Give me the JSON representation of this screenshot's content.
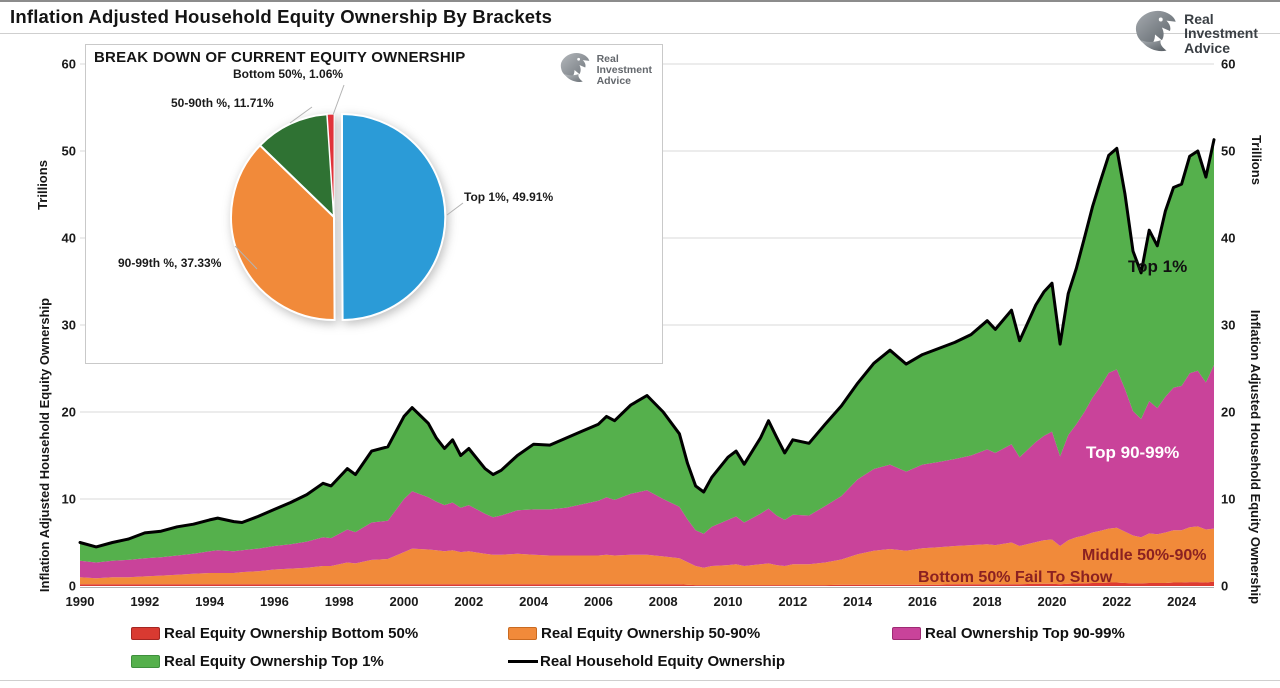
{
  "page": {
    "title": "Inflation Adjusted Household Equity Ownership By Brackets"
  },
  "brand": {
    "name_lines": [
      "Real",
      "Investment",
      "Advice"
    ]
  },
  "inset": {
    "title": "BREAK DOWN OF CURRENT EQUITY OWNERSHIP",
    "logo_lines": [
      "Real",
      "Investment",
      "Advice"
    ]
  },
  "axes": {
    "left_unit_label": "Trillions",
    "left_axis_label": "Inflation Adjusted Household Equity Ownership",
    "right_unit_label": "Trillions",
    "right_axis_label": "Inflation Adjusted Household Equity Ownership",
    "y_ticks": [
      0,
      10,
      20,
      30,
      40,
      50,
      60
    ],
    "x_ticks": [
      1990,
      1992,
      1994,
      1996,
      1998,
      2000,
      2002,
      2004,
      2006,
      2008,
      2010,
      2012,
      2014,
      2016,
      2018,
      2020,
      2022,
      2024
    ]
  },
  "annotations": [
    {
      "id": "top1",
      "text": "Top 1%",
      "color": "#111111"
    },
    {
      "id": "top9099",
      "text": "Top 90-99%",
      "color": "#ffffff"
    },
    {
      "id": "middle",
      "text": "Middle 50%-90%",
      "color": "#8b2121"
    },
    {
      "id": "bottom",
      "text": "Bottom 50% Fail To Show",
      "color": "#8b2121"
    }
  ],
  "legend": {
    "items": [
      {
        "label": "Real Equity Ownership Bottom 50%",
        "color": "#d93a31",
        "border": "#a32622",
        "type": "patch"
      },
      {
        "label": "Real Equity Ownership 50-90%",
        "color": "#f18a3a",
        "border": "#c96a20",
        "type": "patch"
      },
      {
        "label": "Real Ownership Top 90-99%",
        "color": "#c9439a",
        "border": "#9e2a73",
        "type": "patch"
      },
      {
        "label": "Real Equity Ownership Top 1%",
        "color": "#55b04c",
        "border": "#3f8f3d",
        "type": "patch"
      },
      {
        "label": "Real Household Equity Ownership",
        "color": "#000000",
        "border": "#000000",
        "type": "line"
      }
    ]
  },
  "chart_data": [
    {
      "type": "area",
      "stacked": true,
      "title": "Inflation Adjusted Household Equity Ownership By Brackets",
      "ylabel": "Inflation Adjusted Household Equity Ownership (Trillions)",
      "x_range": [
        1990,
        2025
      ],
      "ylim": [
        0,
        60
      ],
      "grid": "horizontal",
      "grid_color": "#d9d9d9",
      "x": [
        1990,
        1990.5,
        1991,
        1991.5,
        1992,
        1992.5,
        1993,
        1993.5,
        1994,
        1994.25,
        1994.75,
        1995,
        1995.5,
        1996,
        1996.5,
        1997,
        1997.5,
        1997.75,
        1998.25,
        1998.5,
        1999,
        1999.5,
        2000,
        2000.25,
        2000.75,
        2001,
        2001.25,
        2001.5,
        2001.75,
        2002,
        2002.5,
        2002.75,
        2003,
        2003.5,
        2004,
        2004.5,
        2005,
        2005.5,
        2006,
        2006.25,
        2006.5,
        2007,
        2007.5,
        2008,
        2008.5,
        2008.75,
        2009,
        2009.25,
        2009.5,
        2010,
        2010.25,
        2010.5,
        2011,
        2011.25,
        2011.5,
        2011.75,
        2012,
        2012.5,
        2013,
        2013.5,
        2014,
        2014.5,
        2015,
        2015.5,
        2016,
        2016.5,
        2017,
        2017.5,
        2018,
        2018.25,
        2018.75,
        2019,
        2019.5,
        2019.75,
        2020,
        2020.25,
        2020.5,
        2020.75,
        2021,
        2021.25,
        2021.5,
        2021.75,
        2022,
        2022.25,
        2022.5,
        2022.75,
        2023,
        2023.25,
        2023.5,
        2023.75,
        2024,
        2024.25,
        2024.5,
        2024.75,
        2025
      ],
      "series": [
        {
          "name": "Real Equity Ownership Bottom 50%",
          "color": "#dd3b32",
          "values": [
            0.2,
            0.2,
            0.2,
            0.2,
            0.2,
            0.2,
            0.2,
            0.2,
            0.2,
            0.2,
            0.2,
            0.2,
            0.2,
            0.2,
            0.2,
            0.2,
            0.2,
            0.2,
            0.2,
            0.2,
            0.2,
            0.2,
            0.2,
            0.2,
            0.2,
            0.2,
            0.2,
            0.2,
            0.2,
            0.2,
            0.2,
            0.2,
            0.2,
            0.2,
            0.2,
            0.2,
            0.2,
            0.2,
            0.2,
            0.2,
            0.2,
            0.2,
            0.2,
            0.2,
            0.2,
            0.15,
            0.1,
            0.1,
            0.1,
            0.1,
            0.1,
            0.1,
            0.1,
            0.1,
            0.1,
            0.1,
            0.1,
            0.1,
            0.1,
            0.15,
            0.15,
            0.15,
            0.15,
            0.15,
            0.15,
            0.15,
            0.2,
            0.2,
            0.2,
            0.2,
            0.2,
            0.2,
            0.25,
            0.25,
            0.25,
            0.2,
            0.25,
            0.3,
            0.3,
            0.35,
            0.35,
            0.4,
            0.4,
            0.35,
            0.3,
            0.3,
            0.35,
            0.35,
            0.35,
            0.4,
            0.4,
            0.45,
            0.45,
            0.4,
            0.5
          ]
        },
        {
          "name": "Real Equity Ownership 50-90%",
          "color": "#f18a3a",
          "values": [
            0.8,
            0.7,
            0.8,
            0.8,
            0.9,
            1.0,
            1.1,
            1.2,
            1.3,
            1.3,
            1.3,
            1.4,
            1.5,
            1.7,
            1.8,
            1.9,
            2.1,
            2.1,
            2.5,
            2.4,
            2.8,
            2.9,
            3.7,
            4.1,
            4.0,
            3.9,
            3.8,
            3.9,
            3.7,
            3.8,
            3.5,
            3.4,
            3.4,
            3.5,
            3.4,
            3.3,
            3.3,
            3.3,
            3.3,
            3.4,
            3.3,
            3.4,
            3.4,
            3.2,
            3.0,
            2.6,
            2.2,
            2.0,
            2.2,
            2.3,
            2.4,
            2.2,
            2.4,
            2.5,
            2.3,
            2.2,
            2.4,
            2.4,
            2.6,
            2.9,
            3.5,
            3.9,
            4.1,
            3.9,
            4.2,
            4.3,
            4.4,
            4.5,
            4.6,
            4.5,
            4.8,
            4.4,
            4.8,
            5.0,
            5.1,
            4.4,
            5.0,
            5.3,
            5.5,
            5.8,
            6.0,
            6.2,
            6.3,
            5.9,
            5.5,
            5.3,
            5.7,
            5.6,
            5.8,
            6.0,
            6.0,
            6.3,
            6.4,
            6.1,
            6.1
          ]
        },
        {
          "name": "Real Ownership Top 90-99%",
          "color": "#c9439a",
          "values": [
            1.9,
            1.8,
            1.9,
            2.0,
            2.1,
            2.1,
            2.2,
            2.3,
            2.5,
            2.6,
            2.5,
            2.5,
            2.6,
            2.7,
            2.8,
            3.0,
            3.3,
            3.2,
            3.8,
            3.6,
            4.3,
            4.4,
            6.1,
            6.6,
            6.0,
            5.6,
            5.3,
            5.5,
            5.1,
            5.3,
            4.6,
            4.3,
            4.5,
            5.0,
            5.2,
            5.3,
            5.5,
            5.9,
            6.3,
            6.6,
            6.4,
            7.0,
            7.4,
            6.6,
            5.9,
            4.9,
            4.1,
            3.9,
            4.5,
            5.2,
            5.5,
            5.0,
            5.8,
            6.3,
            5.7,
            5.3,
            5.7,
            5.6,
            6.5,
            7.3,
            8.6,
            9.4,
            9.7,
            9.1,
            9.6,
            9.8,
            10.0,
            10.3,
            10.9,
            10.6,
            11.3,
            10.2,
            11.5,
            12.0,
            12.4,
            10.3,
            12.1,
            13.0,
            14.2,
            15.5,
            16.6,
            17.9,
            18.2,
            16.4,
            14.3,
            13.6,
            15.2,
            14.5,
            15.6,
            16.4,
            16.6,
            17.7,
            17.9,
            16.9,
            18.8
          ]
        },
        {
          "name": "Real Equity Ownership Top 1%",
          "color": "#55b04c",
          "values": [
            2.1,
            1.8,
            2.1,
            2.4,
            2.9,
            3.0,
            3.3,
            3.4,
            3.6,
            3.7,
            3.4,
            3.2,
            3.7,
            4.2,
            4.8,
            5.4,
            6.2,
            6.0,
            7.0,
            6.6,
            8.2,
            8.5,
            9.5,
            9.6,
            8.5,
            7.3,
            6.5,
            7.2,
            6.0,
            6.5,
            5.2,
            4.9,
            5.2,
            6.3,
            7.5,
            7.4,
            8.0,
            8.4,
            8.8,
            9.3,
            9.1,
            10.2,
            10.9,
            10.0,
            8.4,
            6.4,
            5.1,
            4.8,
            5.7,
            7.2,
            7.5,
            6.7,
            8.7,
            10.1,
            9.0,
            7.7,
            8.6,
            8.3,
            9.4,
            10.3,
            11.0,
            12.1,
            13.0,
            12.3,
            12.6,
            13.0,
            13.4,
            13.9,
            14.8,
            14.2,
            15.4,
            13.4,
            15.7,
            16.5,
            17.0,
            12.9,
            16.2,
            17.9,
            20.0,
            21.9,
            23.6,
            25.0,
            25.4,
            22.4,
            18.4,
            16.8,
            19.6,
            18.6,
            21.3,
            23.0,
            23.2,
            24.9,
            25.2,
            23.6,
            25.9
          ]
        }
      ],
      "total_line": {
        "name": "Real Household Equity Ownership",
        "color": "#000000",
        "values": [
          5.0,
          4.5,
          5.0,
          5.4,
          6.1,
          6.3,
          6.8,
          7.1,
          7.6,
          7.8,
          7.4,
          7.3,
          8.0,
          8.8,
          9.6,
          10.5,
          11.8,
          11.5,
          13.5,
          12.8,
          15.5,
          16.0,
          19.5,
          20.5,
          18.7,
          17.0,
          15.8,
          16.8,
          15.0,
          15.8,
          13.5,
          12.8,
          13.3,
          15.0,
          16.3,
          16.2,
          17.0,
          17.8,
          18.6,
          19.5,
          19.0,
          20.8,
          21.9,
          20.0,
          17.5,
          14.1,
          11.5,
          10.8,
          12.5,
          14.8,
          15.5,
          14.0,
          17.0,
          19.0,
          17.1,
          15.3,
          16.8,
          16.4,
          18.6,
          20.7,
          23.3,
          25.6,
          27.1,
          25.5,
          26.6,
          27.3,
          28.0,
          28.9,
          30.5,
          29.5,
          31.7,
          28.2,
          32.3,
          33.8,
          34.8,
          27.8,
          33.6,
          36.5,
          40.0,
          43.6,
          46.6,
          49.5,
          50.3,
          45.1,
          38.5,
          36.0,
          40.9,
          39.1,
          43.1,
          45.8,
          46.2,
          49.4,
          50.0,
          47.0,
          51.3
        ]
      }
    },
    {
      "type": "pie",
      "title": "BREAK DOWN OF CURRENT EQUITY OWNERSHIP",
      "clockwise_from_top": true,
      "slices": [
        {
          "label": "Top 1%",
          "value": 49.91,
          "color": "#2b9bd7",
          "display": "Top 1%, 49.91%",
          "exploded": true
        },
        {
          "label": "90-99th %",
          "value": 37.33,
          "color": "#f18a3a",
          "display": "90-99th %, 37.33%",
          "exploded": false
        },
        {
          "label": "50-90th %",
          "value": 11.71,
          "color": "#2f7233",
          "display": "50-90th %, 11.71%",
          "exploded": false
        },
        {
          "label": "Bottom 50%",
          "value": 1.06,
          "color": "#e0333a",
          "display": "Bottom 50%, 1.06%",
          "exploded": false
        }
      ]
    }
  ]
}
